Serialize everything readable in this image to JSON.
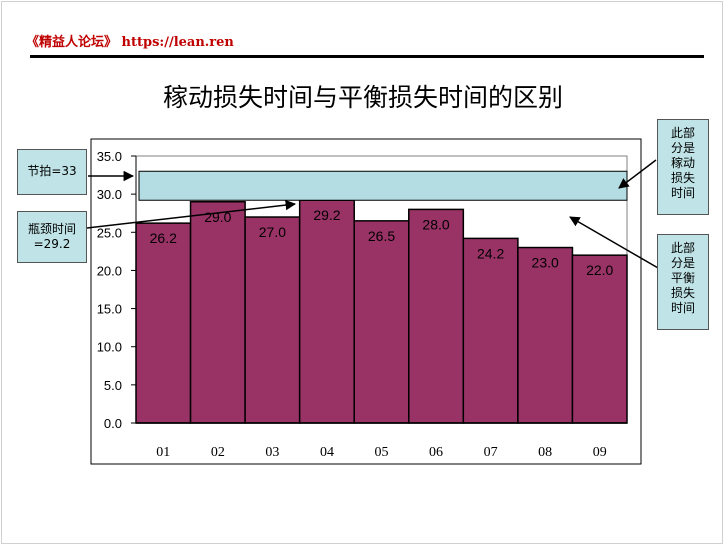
{
  "header": {
    "brand_text": "《精益人论坛》 https://lean.ren"
  },
  "slide": {
    "title": "稼动损失时间与平衡损失时间的区别"
  },
  "colors": {
    "bar": "#993366",
    "band": "#b3dde2",
    "brand": "#c00000",
    "callout_bg": "#bfe3e6"
  },
  "callouts": {
    "takt": "节拍=33",
    "bottleneck": "瓶颈时间=29.2",
    "operation_loss": "此部分是稼动损失时间",
    "balance_loss": "此部分是平衡损失时间"
  },
  "chart_data": {
    "type": "bar",
    "categories": [
      "01",
      "02",
      "03",
      "04",
      "05",
      "06",
      "07",
      "08",
      "09"
    ],
    "values": [
      26.2,
      29.0,
      27.0,
      29.2,
      26.5,
      28.0,
      24.2,
      23.0,
      22.0
    ],
    "value_labels": [
      "26.2",
      "29.0",
      "27.0",
      "29.2",
      "26.5",
      "28.0",
      "24.2",
      "23.0",
      "22.0"
    ],
    "ylim": [
      0,
      35
    ],
    "yticks": [
      0,
      5,
      10,
      15,
      20,
      25,
      30,
      35
    ],
    "ytick_labels": [
      "0.0",
      "5.0",
      "10.0",
      "15.0",
      "20.0",
      "25.0",
      "30.0",
      "35.0"
    ],
    "band": {
      "from": 29.2,
      "to": 33
    },
    "title": "",
    "xlabel": "",
    "ylabel": "",
    "grid": false
  }
}
